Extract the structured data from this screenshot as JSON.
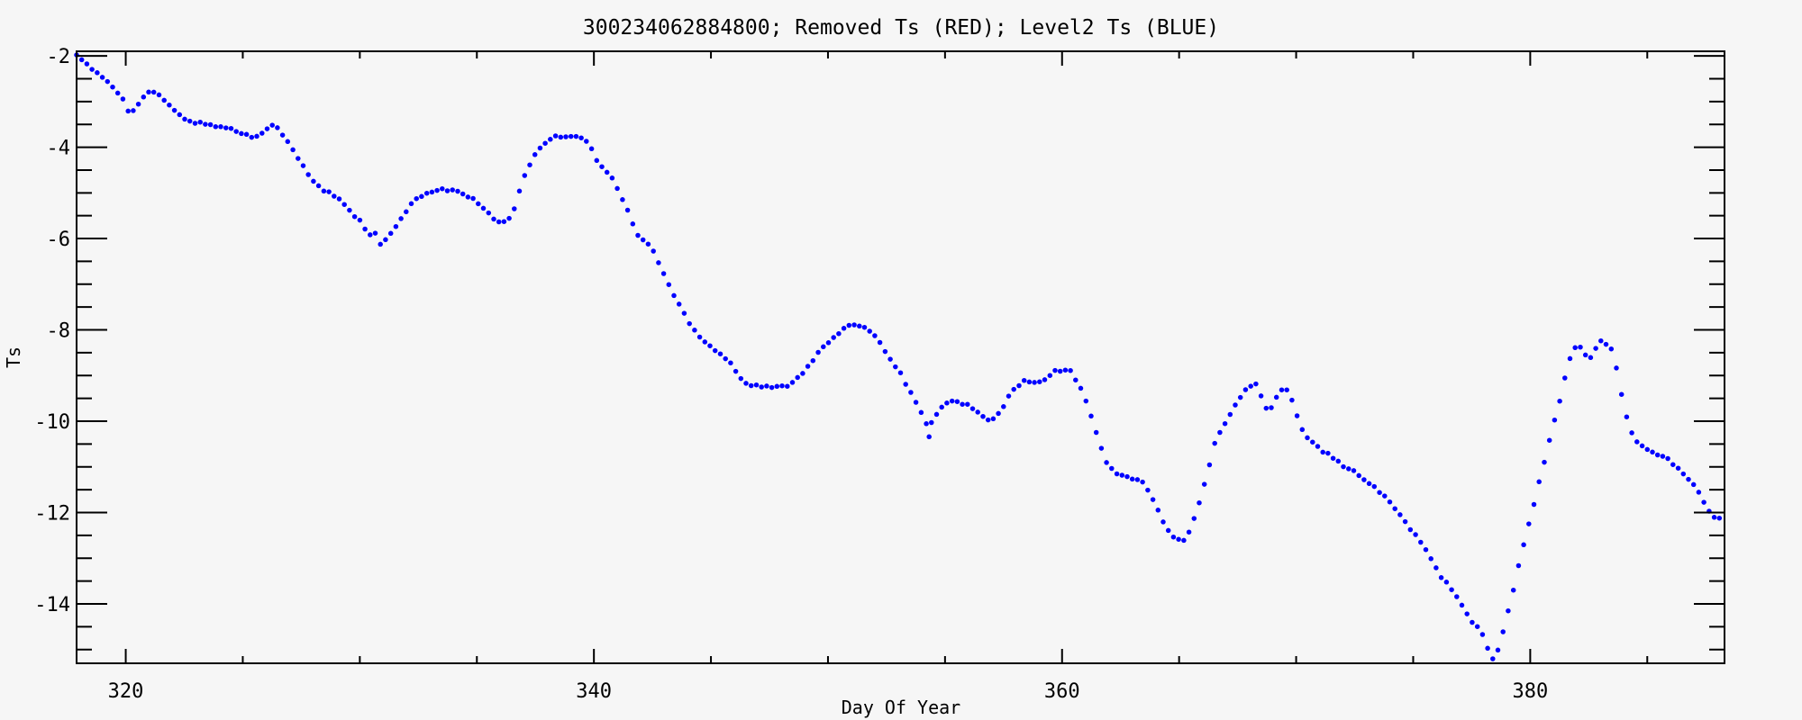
{
  "window": {
    "background_color": "#f6f6f6",
    "foreground_color": "#000000"
  },
  "chart_data": {
    "type": "scatter",
    "title": "300234062884800; Removed Ts (RED); Level2 Ts (BLUE)",
    "xlabel": "Day Of Year",
    "ylabel": "Ts",
    "xlim": [
      317.9,
      388.3
    ],
    "ylim": [
      -15.3,
      -1.9
    ],
    "grid": false,
    "frame": "box-with-inward-ticks",
    "x_ticks": {
      "major": [
        {
          "value": 320,
          "label": "320"
        },
        {
          "value": 340,
          "label": "340"
        },
        {
          "value": 360,
          "label": "360"
        },
        {
          "value": 380,
          "label": "380"
        }
      ],
      "minor_interval": 5
    },
    "y_ticks": {
      "major": [
        {
          "value": -2,
          "label": "-2"
        },
        {
          "value": -4,
          "label": "-4"
        },
        {
          "value": -6,
          "label": "-6"
        },
        {
          "value": -8,
          "label": "-8"
        },
        {
          "value": -10,
          "label": "-10"
        },
        {
          "value": -12,
          "label": "-12"
        },
        {
          "value": -14,
          "label": "-14"
        }
      ],
      "minor_interval": 0.5
    },
    "legend_in_title": [
      {
        "name": "Removed Ts",
        "color": "#FF0000",
        "visible_points": 0
      },
      {
        "name": "Level2 Ts",
        "color": "#0000FF",
        "visible_points": "all"
      }
    ],
    "series": [
      {
        "name": "Level2 Ts",
        "color": "#0000FF",
        "marker": "filled-dot",
        "marker_size_px": 5.5,
        "point_interval_days": 0.22,
        "keypoints": [
          [
            317.9,
            -1.95
          ],
          [
            318.2,
            -2.12
          ],
          [
            318.6,
            -2.33
          ],
          [
            319.0,
            -2.47
          ],
          [
            319.3,
            -2.6
          ],
          [
            319.6,
            -2.76
          ],
          [
            319.9,
            -2.94
          ],
          [
            320.2,
            -3.3
          ],
          [
            320.45,
            -3.12
          ],
          [
            320.7,
            -2.92
          ],
          [
            321.0,
            -2.8
          ],
          [
            321.4,
            -2.84
          ],
          [
            321.8,
            -3.06
          ],
          [
            322.2,
            -3.27
          ],
          [
            322.6,
            -3.4
          ],
          [
            323.1,
            -3.47
          ],
          [
            323.6,
            -3.51
          ],
          [
            324.1,
            -3.55
          ],
          [
            324.6,
            -3.62
          ],
          [
            325.0,
            -3.7
          ],
          [
            325.4,
            -3.78
          ],
          [
            325.7,
            -3.72
          ],
          [
            326.0,
            -3.58
          ],
          [
            326.3,
            -3.52
          ],
          [
            326.6,
            -3.62
          ],
          [
            326.9,
            -3.88
          ],
          [
            327.2,
            -4.12
          ],
          [
            327.5,
            -4.35
          ],
          [
            327.8,
            -4.6
          ],
          [
            328.1,
            -4.8
          ],
          [
            328.45,
            -4.95
          ],
          [
            328.8,
            -5.02
          ],
          [
            329.1,
            -5.12
          ],
          [
            329.4,
            -5.28
          ],
          [
            329.7,
            -5.45
          ],
          [
            330.0,
            -5.62
          ],
          [
            330.25,
            -5.8
          ],
          [
            330.45,
            -5.95
          ],
          [
            330.65,
            -5.87
          ],
          [
            330.9,
            -6.15
          ],
          [
            331.15,
            -6.02
          ],
          [
            331.4,
            -5.85
          ],
          [
            331.7,
            -5.62
          ],
          [
            332.0,
            -5.38
          ],
          [
            332.3,
            -5.2
          ],
          [
            332.7,
            -5.05
          ],
          [
            333.1,
            -4.95
          ],
          [
            333.5,
            -4.92
          ],
          [
            334.0,
            -4.94
          ],
          [
            334.4,
            -5.04
          ],
          [
            334.8,
            -5.12
          ],
          [
            335.1,
            -5.26
          ],
          [
            335.4,
            -5.42
          ],
          [
            335.7,
            -5.56
          ],
          [
            336.0,
            -5.63
          ],
          [
            336.35,
            -5.62
          ],
          [
            336.6,
            -5.32
          ],
          [
            336.8,
            -4.98
          ],
          [
            337.0,
            -4.7
          ],
          [
            337.25,
            -4.38
          ],
          [
            337.5,
            -4.15
          ],
          [
            337.8,
            -3.95
          ],
          [
            338.1,
            -3.82
          ],
          [
            338.5,
            -3.75
          ],
          [
            338.9,
            -3.76
          ],
          [
            339.3,
            -3.74
          ],
          [
            339.6,
            -3.82
          ],
          [
            339.9,
            -4.05
          ],
          [
            340.2,
            -4.35
          ],
          [
            340.5,
            -4.52
          ],
          [
            340.8,
            -4.7
          ],
          [
            341.1,
            -5.0
          ],
          [
            341.4,
            -5.35
          ],
          [
            341.7,
            -5.72
          ],
          [
            341.95,
            -6.02
          ],
          [
            342.25,
            -6.06
          ],
          [
            342.5,
            -6.22
          ],
          [
            342.8,
            -6.58
          ],
          [
            343.1,
            -6.9
          ],
          [
            343.4,
            -7.22
          ],
          [
            343.7,
            -7.5
          ],
          [
            344.0,
            -7.78
          ],
          [
            344.3,
            -8.0
          ],
          [
            344.6,
            -8.18
          ],
          [
            344.9,
            -8.32
          ],
          [
            345.2,
            -8.45
          ],
          [
            345.6,
            -8.6
          ],
          [
            345.9,
            -8.75
          ],
          [
            346.2,
            -9.02
          ],
          [
            346.5,
            -9.18
          ],
          [
            347.0,
            -9.23
          ],
          [
            347.5,
            -9.26
          ],
          [
            348.0,
            -9.25
          ],
          [
            348.4,
            -9.18
          ],
          [
            348.8,
            -9.0
          ],
          [
            349.2,
            -8.75
          ],
          [
            349.6,
            -8.5
          ],
          [
            350.0,
            -8.28
          ],
          [
            350.4,
            -8.1
          ],
          [
            350.8,
            -7.95
          ],
          [
            351.2,
            -7.87
          ],
          [
            351.6,
            -7.93
          ],
          [
            352.0,
            -8.12
          ],
          [
            352.4,
            -8.42
          ],
          [
            352.8,
            -8.72
          ],
          [
            353.2,
            -9.05
          ],
          [
            353.6,
            -9.42
          ],
          [
            353.95,
            -9.8
          ],
          [
            354.3,
            -10.12
          ],
          [
            354.6,
            -9.88
          ],
          [
            354.95,
            -9.65
          ],
          [
            355.3,
            -9.58
          ],
          [
            355.7,
            -9.6
          ],
          [
            356.1,
            -9.66
          ],
          [
            356.5,
            -9.86
          ],
          [
            356.8,
            -9.98
          ],
          [
            357.1,
            -9.96
          ],
          [
            357.4,
            -9.75
          ],
          [
            357.7,
            -9.48
          ],
          [
            358.0,
            -9.25
          ],
          [
            358.4,
            -9.13
          ],
          [
            358.9,
            -9.16
          ],
          [
            359.3,
            -9.1
          ],
          [
            359.6,
            -8.93
          ],
          [
            360.0,
            -8.87
          ],
          [
            360.4,
            -8.92
          ],
          [
            360.7,
            -9.18
          ],
          [
            361.0,
            -9.55
          ],
          [
            361.3,
            -9.95
          ],
          [
            361.6,
            -10.45
          ],
          [
            361.9,
            -10.9
          ],
          [
            362.2,
            -11.12
          ],
          [
            362.6,
            -11.2
          ],
          [
            363.0,
            -11.24
          ],
          [
            363.4,
            -11.3
          ],
          [
            363.7,
            -11.55
          ],
          [
            364.0,
            -11.85
          ],
          [
            364.3,
            -12.18
          ],
          [
            364.6,
            -12.45
          ],
          [
            364.9,
            -12.6
          ],
          [
            365.2,
            -12.62
          ],
          [
            365.5,
            -12.35
          ],
          [
            365.8,
            -11.92
          ],
          [
            366.1,
            -11.35
          ],
          [
            366.4,
            -10.72
          ],
          [
            366.65,
            -10.28
          ],
          [
            366.9,
            -10.1
          ],
          [
            367.15,
            -9.9
          ],
          [
            367.4,
            -9.62
          ],
          [
            367.7,
            -9.42
          ],
          [
            368.0,
            -9.22
          ],
          [
            368.3,
            -9.17
          ],
          [
            368.55,
            -9.5
          ],
          [
            368.75,
            -9.76
          ],
          [
            368.95,
            -9.72
          ],
          [
            369.2,
            -9.42
          ],
          [
            369.45,
            -9.26
          ],
          [
            369.7,
            -9.38
          ],
          [
            369.95,
            -9.75
          ],
          [
            370.2,
            -10.1
          ],
          [
            370.45,
            -10.32
          ],
          [
            370.75,
            -10.45
          ],
          [
            371.05,
            -10.62
          ],
          [
            371.35,
            -10.72
          ],
          [
            371.65,
            -10.83
          ],
          [
            371.95,
            -10.95
          ],
          [
            372.3,
            -11.05
          ],
          [
            372.7,
            -11.2
          ],
          [
            373.1,
            -11.35
          ],
          [
            373.5,
            -11.52
          ],
          [
            373.9,
            -11.72
          ],
          [
            374.3,
            -11.95
          ],
          [
            374.7,
            -12.22
          ],
          [
            375.1,
            -12.5
          ],
          [
            375.5,
            -12.78
          ],
          [
            375.85,
            -13.1
          ],
          [
            376.15,
            -13.38
          ],
          [
            376.5,
            -13.55
          ],
          [
            376.85,
            -13.85
          ],
          [
            377.2,
            -14.12
          ],
          [
            377.55,
            -14.4
          ],
          [
            377.85,
            -14.55
          ],
          [
            378.15,
            -14.92
          ],
          [
            378.45,
            -15.28
          ],
          [
            378.7,
            -14.92
          ],
          [
            378.95,
            -14.38
          ],
          [
            379.2,
            -13.85
          ],
          [
            379.5,
            -13.18
          ],
          [
            379.8,
            -12.55
          ],
          [
            380.1,
            -11.95
          ],
          [
            380.4,
            -11.3
          ],
          [
            380.7,
            -10.68
          ],
          [
            381.0,
            -10.05
          ],
          [
            381.3,
            -9.5
          ],
          [
            381.55,
            -8.9
          ],
          [
            381.75,
            -8.52
          ],
          [
            382.0,
            -8.36
          ],
          [
            382.25,
            -8.44
          ],
          [
            382.5,
            -8.68
          ],
          [
            382.75,
            -8.42
          ],
          [
            383.0,
            -8.24
          ],
          [
            383.3,
            -8.3
          ],
          [
            383.55,
            -8.48
          ],
          [
            383.75,
            -9.0
          ],
          [
            383.95,
            -9.55
          ],
          [
            384.15,
            -10.0
          ],
          [
            384.4,
            -10.32
          ],
          [
            384.7,
            -10.52
          ],
          [
            385.0,
            -10.62
          ],
          [
            385.3,
            -10.7
          ],
          [
            385.6,
            -10.8
          ],
          [
            385.85,
            -10.78
          ],
          [
            386.2,
            -11.0
          ],
          [
            386.5,
            -11.12
          ],
          [
            386.8,
            -11.28
          ],
          [
            387.1,
            -11.48
          ],
          [
            387.4,
            -11.75
          ],
          [
            387.7,
            -12.0
          ],
          [
            387.95,
            -12.2
          ],
          [
            388.15,
            -12.08
          ],
          [
            388.3,
            -12.05
          ]
        ],
        "outliers": [
          [
            354.32,
            -10.34
          ]
        ]
      }
    ]
  }
}
